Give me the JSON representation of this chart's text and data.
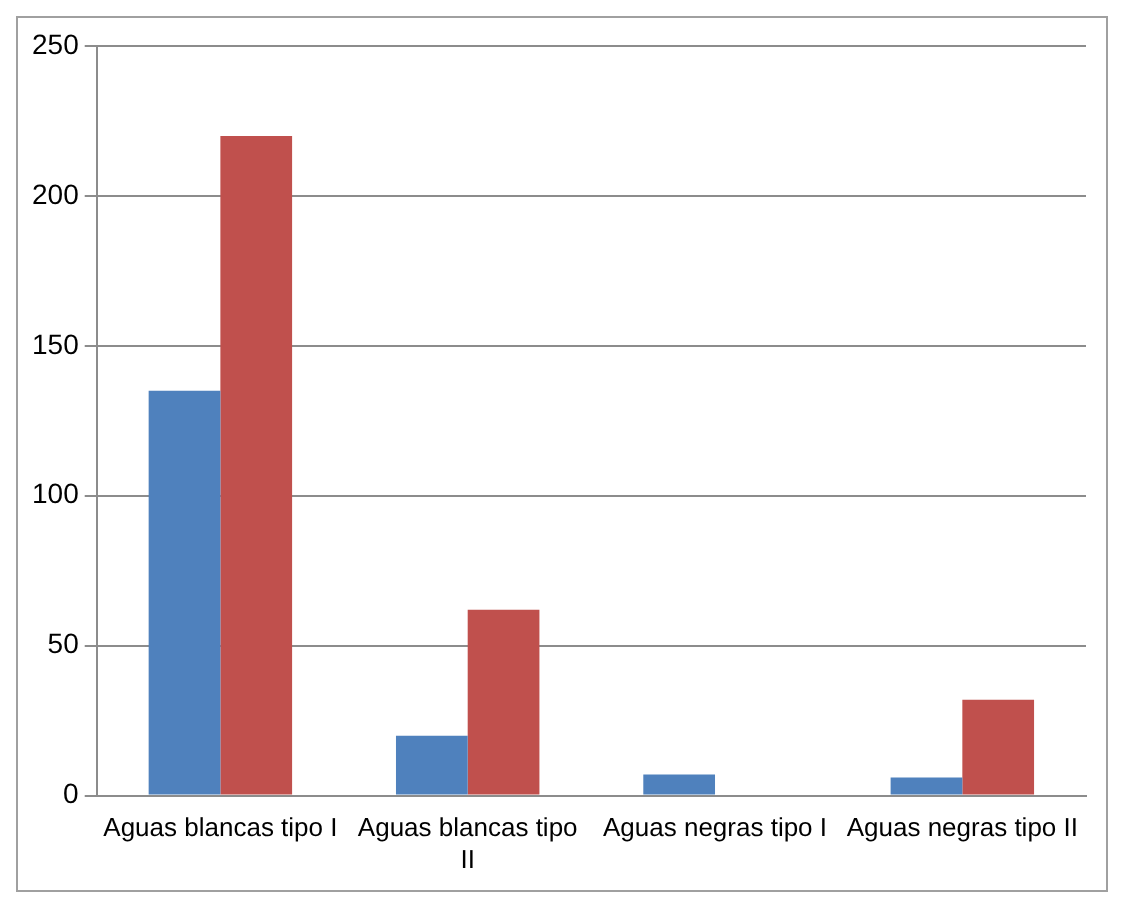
{
  "chart_data": {
    "type": "bar",
    "categories": [
      "Aguas blancas tipo I",
      "Aguas blancas tipo II",
      "Aguas negras tipo I",
      "Aguas negras tipo II"
    ],
    "series": [
      {
        "color": "#4f81bd",
        "values": [
          135,
          20,
          7,
          6
        ]
      },
      {
        "color": "#c0504d",
        "values": [
          220,
          62,
          0,
          32
        ]
      }
    ],
    "ylim": [
      0,
      250
    ],
    "yticks": [
      0,
      50,
      100,
      150,
      200,
      250
    ],
    "grid": "y"
  }
}
